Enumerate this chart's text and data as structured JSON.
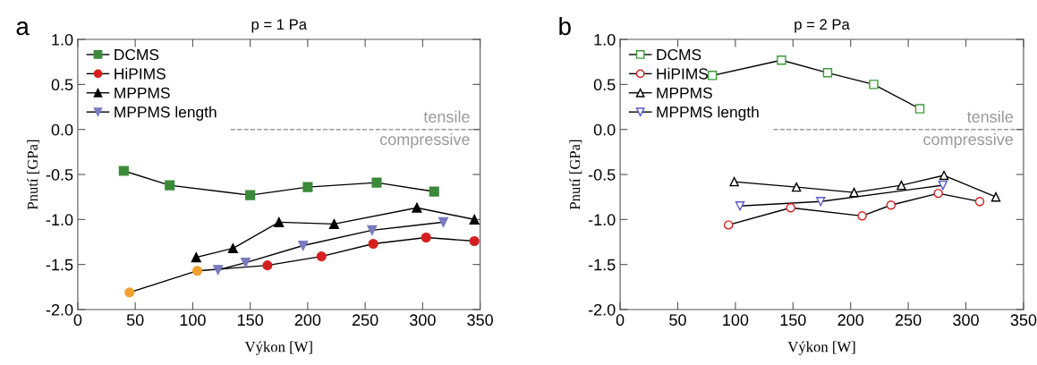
{
  "chart_data": [
    {
      "type": "line",
      "title": "p = 1 Pa",
      "xlabel": "Výkon [W]",
      "ylabel": "Pnutí [GPa]",
      "xlim": [
        0,
        350
      ],
      "ylim": [
        -2.0,
        1.0
      ],
      "xticks": [
        0,
        50,
        100,
        150,
        200,
        250,
        300,
        350
      ],
      "yticks": [
        {
          "value": -2.0,
          "label": "-2.0"
        },
        {
          "value": -1.5,
          "label": "-1.5"
        },
        {
          "value": -1.0,
          "label": "-1.0"
        },
        {
          "value": -0.5,
          "label": "-0.5"
        },
        {
          "value": 0.0,
          "label": "0.0"
        },
        {
          "value": 0.5,
          "label": "0.5"
        },
        {
          "value": 1.0,
          "label": "1.0"
        }
      ],
      "grid": false,
      "legend": "top left",
      "ref_lines": [
        {
          "axis": "y",
          "value": 0,
          "color": "#999999",
          "line_style": "dashed",
          "label": "tensile"
        }
      ],
      "annotations": [
        "a",
        "compressive"
      ],
      "series": [
        {
          "name": "DCMS",
          "color": "#3a8a3a",
          "marker": "square",
          "x": [
            40,
            80,
            150,
            200,
            260,
            310
          ],
          "values": [
            -0.46,
            -0.62,
            -0.73,
            -0.64,
            -0.59,
            -0.69
          ]
        },
        {
          "name": "HiPIMS",
          "color": "#d42020",
          "colors": [
            "#f0a030",
            "#f0a030",
            "#d42020",
            "#d42020",
            "#d42020",
            "#d42020",
            "#d42020"
          ],
          "marker": "circle",
          "x": [
            45,
            104,
            165,
            212,
            257,
            303,
            345
          ],
          "values": [
            -1.81,
            -1.57,
            -1.51,
            -1.41,
            -1.27,
            -1.2,
            -1.24
          ]
        },
        {
          "name": "MPPMS",
          "color": "#000000",
          "marker": "triangle",
          "x": [
            103,
            135,
            175,
            223,
            295,
            345
          ],
          "values": [
            -1.42,
            -1.32,
            -1.03,
            -1.05,
            -0.87,
            -1.0
          ]
        },
        {
          "name": "MPPMS length",
          "color": "#7a7ac0",
          "marker": "triangle_down",
          "x": [
            122,
            146,
            196,
            256,
            318
          ],
          "values": [
            -1.56,
            -1.48,
            -1.29,
            -1.12,
            -1.03
          ]
        }
      ]
    },
    {
      "type": "line",
      "title": "p = 2 Pa",
      "xlabel": "Výkon [W]",
      "ylabel": "Pnutí [GPa]",
      "xlim": [
        0,
        350
      ],
      "ylim": [
        -2.0,
        1.0
      ],
      "xticks": [
        0,
        50,
        100,
        150,
        200,
        250,
        300,
        350
      ],
      "yticks": [
        {
          "value": -2.0,
          "label": "-2.0"
        },
        {
          "value": -1.5,
          "label": "-1.5"
        },
        {
          "value": -1.0,
          "label": "-1.0"
        },
        {
          "value": -0.5,
          "label": "-0.5"
        },
        {
          "value": 0.0,
          "label": "0.0"
        },
        {
          "value": 0.5,
          "label": "0.5"
        },
        {
          "value": 1.0,
          "label": "1.0"
        }
      ],
      "grid": false,
      "legend": "top left",
      "ref_lines": [
        {
          "axis": "y",
          "value": 0,
          "color": "#999999",
          "line_style": "dashed",
          "label": "tensile"
        }
      ],
      "annotations": [
        "b",
        "compressive"
      ],
      "series": [
        {
          "name": "DCMS",
          "color": "#3a9a3a",
          "marker": "square",
          "x": [
            80,
            140,
            180,
            220,
            260
          ],
          "values": [
            0.6,
            0.77,
            0.63,
            0.5,
            0.23
          ]
        },
        {
          "name": "HiPIMS",
          "color": "#d42020",
          "marker": "circle",
          "x": [
            94,
            148,
            210,
            235,
            276,
            312
          ],
          "values": [
            -1.06,
            -0.87,
            -0.96,
            -0.84,
            -0.71,
            -0.8
          ]
        },
        {
          "name": "MPPMS",
          "color": "#000000",
          "marker": "triangle",
          "x": [
            99,
            153,
            203,
            244,
            281,
            326
          ],
          "values": [
            -0.58,
            -0.64,
            -0.7,
            -0.62,
            -0.51,
            -0.75
          ]
        },
        {
          "name": "MPPMS length",
          "color": "#5a5ad0",
          "marker": "triangle_down",
          "x": [
            104,
            174,
            280
          ],
          "values": [
            -0.85,
            -0.8,
            -0.62
          ]
        }
      ]
    }
  ]
}
